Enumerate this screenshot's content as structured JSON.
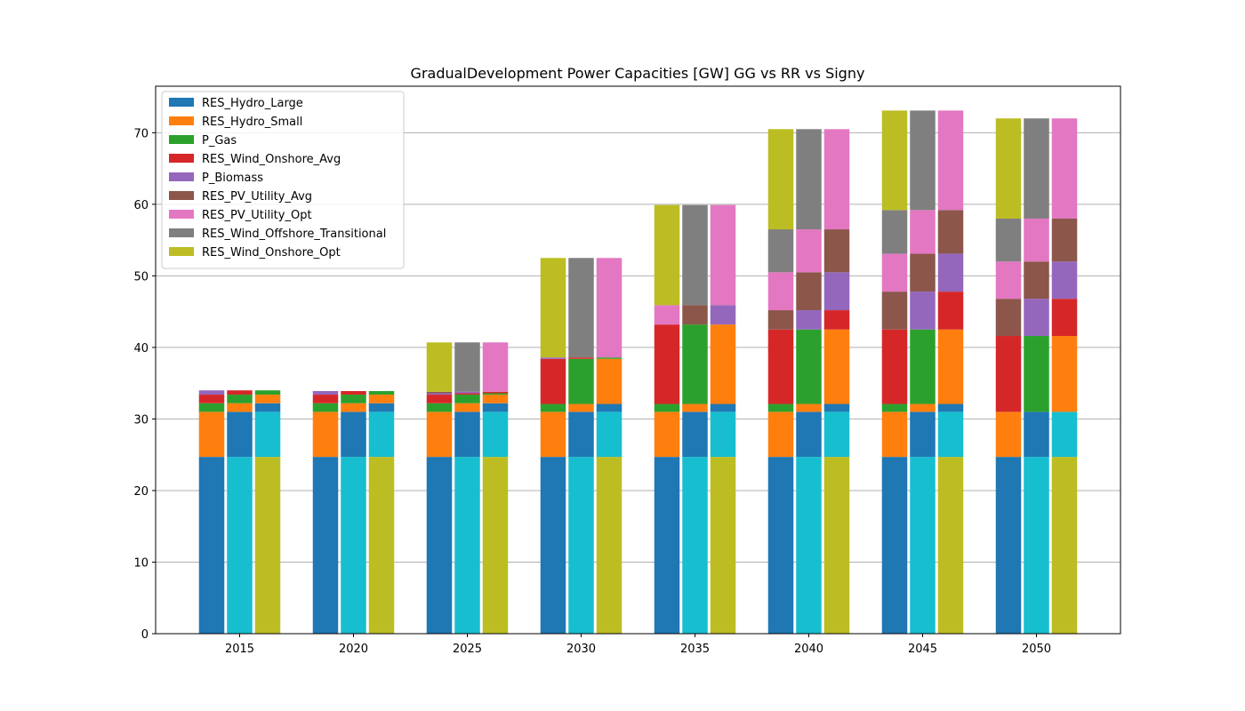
{
  "chart_data": {
    "type": "bar",
    "title": "GradualDevelopment Power Capacities [GW] GG vs RR vs Signy",
    "xlabel": "",
    "ylabel": "",
    "ylim": [
      0,
      76.5
    ],
    "yticks": [
      0,
      10,
      20,
      30,
      40,
      50,
      60,
      70
    ],
    "grid": "y",
    "legend_position": "top-left",
    "categories": [
      "2015",
      "2020",
      "2025",
      "2030",
      "2035",
      "2040",
      "2045",
      "2050"
    ],
    "series": [
      {
        "name": "RES_Hydro_Large",
        "color": "#1f77b4"
      },
      {
        "name": "RES_Hydro_Small",
        "color": "#ff7f0e"
      },
      {
        "name": "P_Gas",
        "color": "#2ca02c"
      },
      {
        "name": "RES_Wind_Onshore_Avg",
        "color": "#d62728"
      },
      {
        "name": "P_Biomass",
        "color": "#9467bd"
      },
      {
        "name": "RES_PV_Utility_Avg",
        "color": "#8c564b"
      },
      {
        "name": "RES_PV_Utility_Opt",
        "color": "#e377c2"
      },
      {
        "name": "RES_Wind_Offshore_Transitional",
        "color": "#7f7f7f"
      },
      {
        "name": "RES_Wind_Onshore_Opt",
        "color": "#bcbd22"
      }
    ],
    "bar_groups": [
      {
        "category": "2015",
        "bars": [
          [
            [
              24.7,
              "#1f77b4"
            ],
            [
              6.3,
              "#ff7f0e"
            ],
            [
              1.2,
              "#2ca02c"
            ],
            [
              1.2,
              "#d62728"
            ],
            [
              0.6,
              "#9467bd"
            ]
          ],
          [
            [
              24.7,
              "#17becf"
            ],
            [
              6.3,
              "#1f77b4"
            ],
            [
              1.2,
              "#ff7f0e"
            ],
            [
              1.2,
              "#2ca02c"
            ],
            [
              0.6,
              "#d62728"
            ]
          ],
          [
            [
              24.7,
              "#bcbd22"
            ],
            [
              6.3,
              "#17becf"
            ],
            [
              1.2,
              "#1f77b4"
            ],
            [
              1.2,
              "#ff7f0e"
            ],
            [
              0.6,
              "#2ca02c"
            ]
          ]
        ]
      },
      {
        "category": "2020",
        "bars": [
          [
            [
              24.7,
              "#1f77b4"
            ],
            [
              6.3,
              "#ff7f0e"
            ],
            [
              1.2,
              "#2ca02c"
            ],
            [
              1.2,
              "#d62728"
            ],
            [
              0.5,
              "#9467bd"
            ]
          ],
          [
            [
              24.7,
              "#17becf"
            ],
            [
              6.3,
              "#1f77b4"
            ],
            [
              1.2,
              "#ff7f0e"
            ],
            [
              1.2,
              "#2ca02c"
            ],
            [
              0.5,
              "#d62728"
            ]
          ],
          [
            [
              24.7,
              "#bcbd22"
            ],
            [
              6.3,
              "#17becf"
            ],
            [
              1.2,
              "#1f77b4"
            ],
            [
              1.2,
              "#ff7f0e"
            ],
            [
              0.5,
              "#2ca02c"
            ]
          ]
        ]
      },
      {
        "category": "2025",
        "bars": [
          [
            [
              24.7,
              "#1f77b4"
            ],
            [
              6.3,
              "#ff7f0e"
            ],
            [
              1.2,
              "#2ca02c"
            ],
            [
              1.2,
              "#d62728"
            ],
            [
              0.2,
              "#9467bd"
            ],
            [
              0.2,
              "#8c564b"
            ],
            [
              6.9,
              "#bcbd22"
            ]
          ],
          [
            [
              24.7,
              "#17becf"
            ],
            [
              6.3,
              "#1f77b4"
            ],
            [
              1.2,
              "#ff7f0e"
            ],
            [
              1.2,
              "#2ca02c"
            ],
            [
              0.2,
              "#d62728"
            ],
            [
              0.2,
              "#9467bd"
            ],
            [
              6.9,
              "#7f7f7f"
            ]
          ],
          [
            [
              24.7,
              "#bcbd22"
            ],
            [
              6.3,
              "#17becf"
            ],
            [
              1.2,
              "#1f77b4"
            ],
            [
              1.2,
              "#ff7f0e"
            ],
            [
              0.2,
              "#2ca02c"
            ],
            [
              0.2,
              "#d62728"
            ],
            [
              6.9,
              "#e377c2"
            ]
          ]
        ]
      },
      {
        "category": "2030",
        "bars": [
          [
            [
              24.7,
              "#1f77b4"
            ],
            [
              6.3,
              "#ff7f0e"
            ],
            [
              1.1,
              "#2ca02c"
            ],
            [
              6.3,
              "#d62728"
            ],
            [
              0.2,
              "#9467bd"
            ],
            [
              13.9,
              "#bcbd22"
            ]
          ],
          [
            [
              24.7,
              "#17becf"
            ],
            [
              6.3,
              "#1f77b4"
            ],
            [
              1.1,
              "#ff7f0e"
            ],
            [
              6.3,
              "#2ca02c"
            ],
            [
              0.2,
              "#d62728"
            ],
            [
              13.9,
              "#7f7f7f"
            ]
          ],
          [
            [
              24.7,
              "#bcbd22"
            ],
            [
              6.3,
              "#17becf"
            ],
            [
              1.1,
              "#1f77b4"
            ],
            [
              6.3,
              "#ff7f0e"
            ],
            [
              0.2,
              "#2ca02c"
            ],
            [
              13.9,
              "#e377c2"
            ]
          ]
        ]
      },
      {
        "category": "2035",
        "bars": [
          [
            [
              24.7,
              "#1f77b4"
            ],
            [
              6.3,
              "#ff7f0e"
            ],
            [
              1.1,
              "#2ca02c"
            ],
            [
              11.1,
              "#d62728"
            ],
            [
              2.7,
              "#e377c2"
            ],
            [
              14.0,
              "#bcbd22"
            ]
          ],
          [
            [
              24.7,
              "#17becf"
            ],
            [
              6.3,
              "#1f77b4"
            ],
            [
              1.1,
              "#ff7f0e"
            ],
            [
              11.1,
              "#2ca02c"
            ],
            [
              2.7,
              "#8c564b"
            ],
            [
              14.0,
              "#7f7f7f"
            ]
          ],
          [
            [
              24.7,
              "#bcbd22"
            ],
            [
              6.3,
              "#17becf"
            ],
            [
              1.1,
              "#1f77b4"
            ],
            [
              11.1,
              "#ff7f0e"
            ],
            [
              2.7,
              "#9467bd"
            ],
            [
              14.0,
              "#e377c2"
            ]
          ]
        ]
      },
      {
        "category": "2040",
        "bars": [
          [
            [
              24.7,
              "#1f77b4"
            ],
            [
              6.3,
              "#ff7f0e"
            ],
            [
              1.1,
              "#2ca02c"
            ],
            [
              10.4,
              "#d62728"
            ],
            [
              2.7,
              "#8c564b"
            ],
            [
              5.3,
              "#e377c2"
            ],
            [
              6.0,
              "#7f7f7f"
            ],
            [
              14.0,
              "#bcbd22"
            ]
          ],
          [
            [
              24.7,
              "#17becf"
            ],
            [
              6.3,
              "#1f77b4"
            ],
            [
              1.1,
              "#ff7f0e"
            ],
            [
              10.4,
              "#2ca02c"
            ],
            [
              2.7,
              "#9467bd"
            ],
            [
              5.3,
              "#8c564b"
            ],
            [
              6.0,
              "#e377c2"
            ],
            [
              14.0,
              "#7f7f7f"
            ]
          ],
          [
            [
              24.7,
              "#bcbd22"
            ],
            [
              6.3,
              "#17becf"
            ],
            [
              1.1,
              "#1f77b4"
            ],
            [
              10.4,
              "#ff7f0e"
            ],
            [
              2.7,
              "#d62728"
            ],
            [
              5.3,
              "#9467bd"
            ],
            [
              6.0,
              "#8c564b"
            ],
            [
              14.0,
              "#e377c2"
            ]
          ]
        ]
      },
      {
        "category": "2045",
        "bars": [
          [
            [
              24.7,
              "#1f77b4"
            ],
            [
              6.3,
              "#ff7f0e"
            ],
            [
              1.1,
              "#2ca02c"
            ],
            [
              10.4,
              "#d62728"
            ],
            [
              5.3,
              "#8c564b"
            ],
            [
              5.3,
              "#e377c2"
            ],
            [
              6.1,
              "#7f7f7f"
            ],
            [
              13.9,
              "#bcbd22"
            ]
          ],
          [
            [
              24.7,
              "#17becf"
            ],
            [
              6.3,
              "#1f77b4"
            ],
            [
              1.1,
              "#ff7f0e"
            ],
            [
              10.4,
              "#2ca02c"
            ],
            [
              5.3,
              "#9467bd"
            ],
            [
              5.3,
              "#8c564b"
            ],
            [
              6.1,
              "#e377c2"
            ],
            [
              13.9,
              "#7f7f7f"
            ]
          ],
          [
            [
              24.7,
              "#bcbd22"
            ],
            [
              6.3,
              "#17becf"
            ],
            [
              1.1,
              "#1f77b4"
            ],
            [
              10.4,
              "#ff7f0e"
            ],
            [
              5.3,
              "#d62728"
            ],
            [
              5.3,
              "#9467bd"
            ],
            [
              6.1,
              "#8c564b"
            ],
            [
              13.9,
              "#e377c2"
            ]
          ]
        ]
      },
      {
        "category": "2050",
        "bars": [
          [
            [
              24.7,
              "#1f77b4"
            ],
            [
              6.3,
              "#ff7f0e"
            ],
            [
              10.6,
              "#d62728"
            ],
            [
              5.2,
              "#8c564b"
            ],
            [
              5.2,
              "#e377c2"
            ],
            [
              6.0,
              "#7f7f7f"
            ],
            [
              14.0,
              "#bcbd22"
            ]
          ],
          [
            [
              24.7,
              "#17becf"
            ],
            [
              6.3,
              "#1f77b4"
            ],
            [
              10.6,
              "#2ca02c"
            ],
            [
              5.2,
              "#9467bd"
            ],
            [
              5.2,
              "#8c564b"
            ],
            [
              6.0,
              "#e377c2"
            ],
            [
              14.0,
              "#7f7f7f"
            ]
          ],
          [
            [
              24.7,
              "#bcbd22"
            ],
            [
              6.3,
              "#17becf"
            ],
            [
              10.6,
              "#ff7f0e"
            ],
            [
              5.2,
              "#d62728"
            ],
            [
              5.2,
              "#9467bd"
            ],
            [
              6.0,
              "#8c564b"
            ],
            [
              14.0,
              "#e377c2"
            ]
          ]
        ]
      }
    ]
  }
}
